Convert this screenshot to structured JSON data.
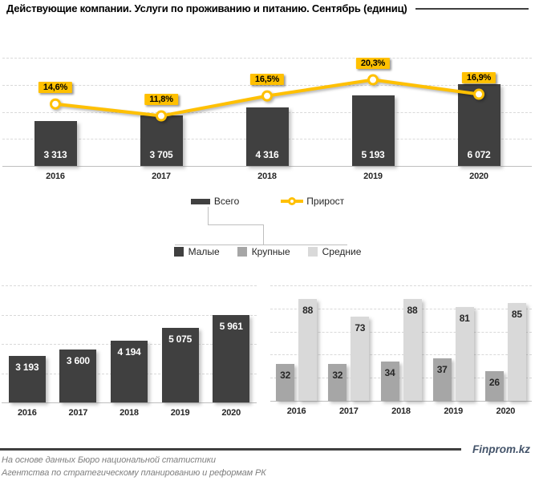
{
  "title": "Действующие компании. Услуги по проживанию и питанию. Сентябрь (единиц)",
  "colors": {
    "dark_bar": "#404040",
    "gray_bar": "#A6A6A6",
    "light_bar": "#D9D9D9",
    "accent_yellow": "#FFC000",
    "grid": "#D9D9D9",
    "axis": "#BFBFBF",
    "bar_label_light": "#FFFFFF",
    "bar_label_dark": "#262626",
    "footer_text": "#7F7F7F",
    "brand_text": "#44546A"
  },
  "legend_top": {
    "total": "Всего",
    "growth": "Прирост"
  },
  "legend_bottom": {
    "small": "Малые",
    "large": "Крупные",
    "medium": "Средние"
  },
  "footer": {
    "line1": "На основе данных Бюро национальной статистики",
    "line2": "Агентства по стратегическому планированию и реформам РК",
    "brand": "Finprom.kz"
  },
  "chart_data": [
    {
      "id": "total-growth",
      "type": "bar+line",
      "title": "Всего действующих компаний и прирост",
      "categories": [
        "2016",
        "2017",
        "2018",
        "2019",
        "2020"
      ],
      "series": [
        {
          "name": "Всего",
          "type": "bar",
          "values": [
            3313,
            3705,
            4316,
            5193,
            6072
          ],
          "labels": [
            "3 313",
            "3 705",
            "4 316",
            "5 193",
            "6 072"
          ]
        },
        {
          "name": "Прирост",
          "type": "line",
          "values": [
            14.6,
            11.8,
            16.5,
            20.3,
            16.9
          ],
          "labels": [
            "14,6%",
            "11,8%",
            "16,5%",
            "20,3%",
            "16,9%"
          ]
        }
      ],
      "ylim": [
        0,
        8000
      ],
      "y2lim": [
        0,
        25.5
      ],
      "grid": true,
      "legend_position": "bottom"
    },
    {
      "id": "small",
      "type": "bar",
      "title": "Малые компании",
      "categories": [
        "2016",
        "2017",
        "2018",
        "2019",
        "2020"
      ],
      "series": [
        {
          "name": "Малые",
          "type": "bar",
          "values": [
            3193,
            3600,
            4194,
            5075,
            5961
          ],
          "labels": [
            "3 193",
            "3 600",
            "4 194",
            "5 075",
            "5 961"
          ]
        }
      ],
      "ylim": [
        0,
        8000
      ],
      "grid": true,
      "legend_position": "top-shared"
    },
    {
      "id": "large-medium",
      "type": "bar",
      "title": "Крупные и средние компании",
      "categories": [
        "2016",
        "2017",
        "2018",
        "2019",
        "2020"
      ],
      "series": [
        {
          "name": "Крупные",
          "type": "bar",
          "values": [
            32,
            32,
            34,
            37,
            26
          ],
          "labels": [
            "32",
            "32",
            "34",
            "37",
            "26"
          ]
        },
        {
          "name": "Средние",
          "type": "bar",
          "values": [
            88,
            73,
            88,
            81,
            85
          ],
          "labels": [
            "88",
            "73",
            "88",
            "81",
            "85"
          ]
        }
      ],
      "ylim": [
        0,
        100
      ],
      "grid": true,
      "legend_position": "top-shared"
    }
  ]
}
